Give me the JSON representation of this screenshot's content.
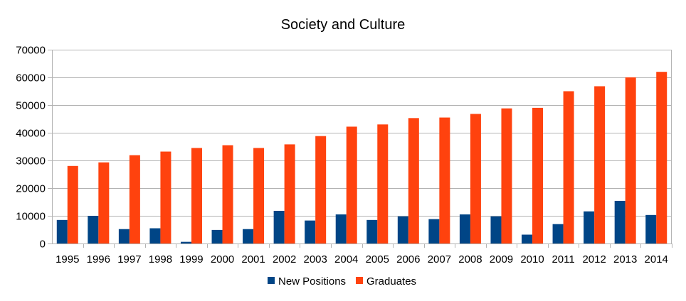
{
  "chart_data": {
    "type": "bar",
    "title": "Society and Culture",
    "xlabel": "",
    "ylabel": "",
    "ylim": [
      0,
      70000
    ],
    "yticks": [
      0,
      10000,
      20000,
      30000,
      40000,
      50000,
      60000,
      70000
    ],
    "grid": true,
    "legend_position": "bottom",
    "categories": [
      "1995",
      "1996",
      "1997",
      "1998",
      "1999",
      "2000",
      "2001",
      "2002",
      "2003",
      "2004",
      "2005",
      "2006",
      "2007",
      "2008",
      "2009",
      "2010",
      "2011",
      "2012",
      "2013",
      "2014"
    ],
    "series": [
      {
        "name": "New Positions",
        "color": "#004586",
        "values": [
          8500,
          10000,
          5200,
          5500,
          600,
          4900,
          5200,
          11800,
          8300,
          10500,
          8500,
          9800,
          8800,
          10500,
          9800,
          3200,
          7000,
          11600,
          15400,
          10300
        ]
      },
      {
        "name": "Graduates",
        "color": "#ff420e",
        "values": [
          28000,
          29300,
          31900,
          33200,
          34500,
          35500,
          34500,
          35800,
          38800,
          42200,
          43000,
          45300,
          45500,
          46800,
          48800,
          49000,
          55000,
          56800,
          60000,
          62000
        ]
      }
    ]
  }
}
